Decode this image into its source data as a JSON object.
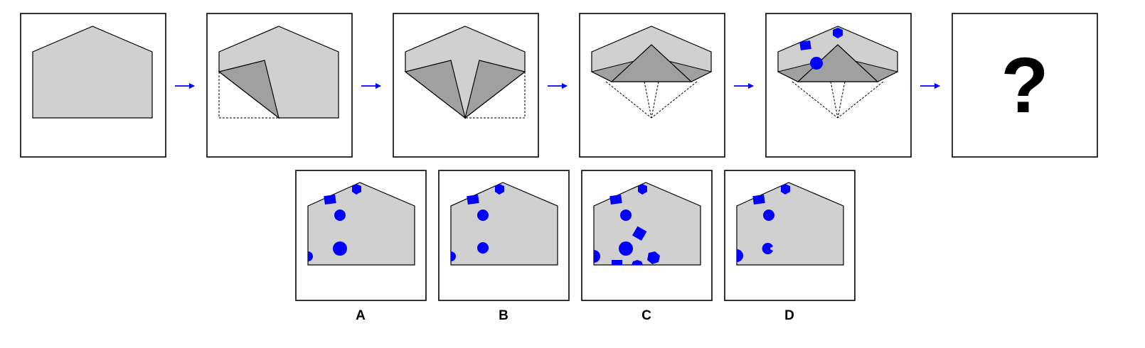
{
  "puzzle": {
    "question_mark": "?",
    "colors": {
      "paper_light": "#d0d0d0",
      "paper_dark": "#a0a0a0",
      "outline": "#000000",
      "marker_blue": "#0000ff",
      "arrow_blue": "#0000ff",
      "frame": "#000000"
    },
    "steps": [
      {
        "name": "unfolded-paper"
      },
      {
        "name": "fold-left-corner"
      },
      {
        "name": "fold-right-corner"
      },
      {
        "name": "fold-bottom-up"
      },
      {
        "name": "punch-holes"
      },
      {
        "name": "unknown-result"
      }
    ],
    "options": [
      {
        "label": "A"
      },
      {
        "label": "B"
      },
      {
        "label": "C"
      },
      {
        "label": "D"
      }
    ]
  }
}
